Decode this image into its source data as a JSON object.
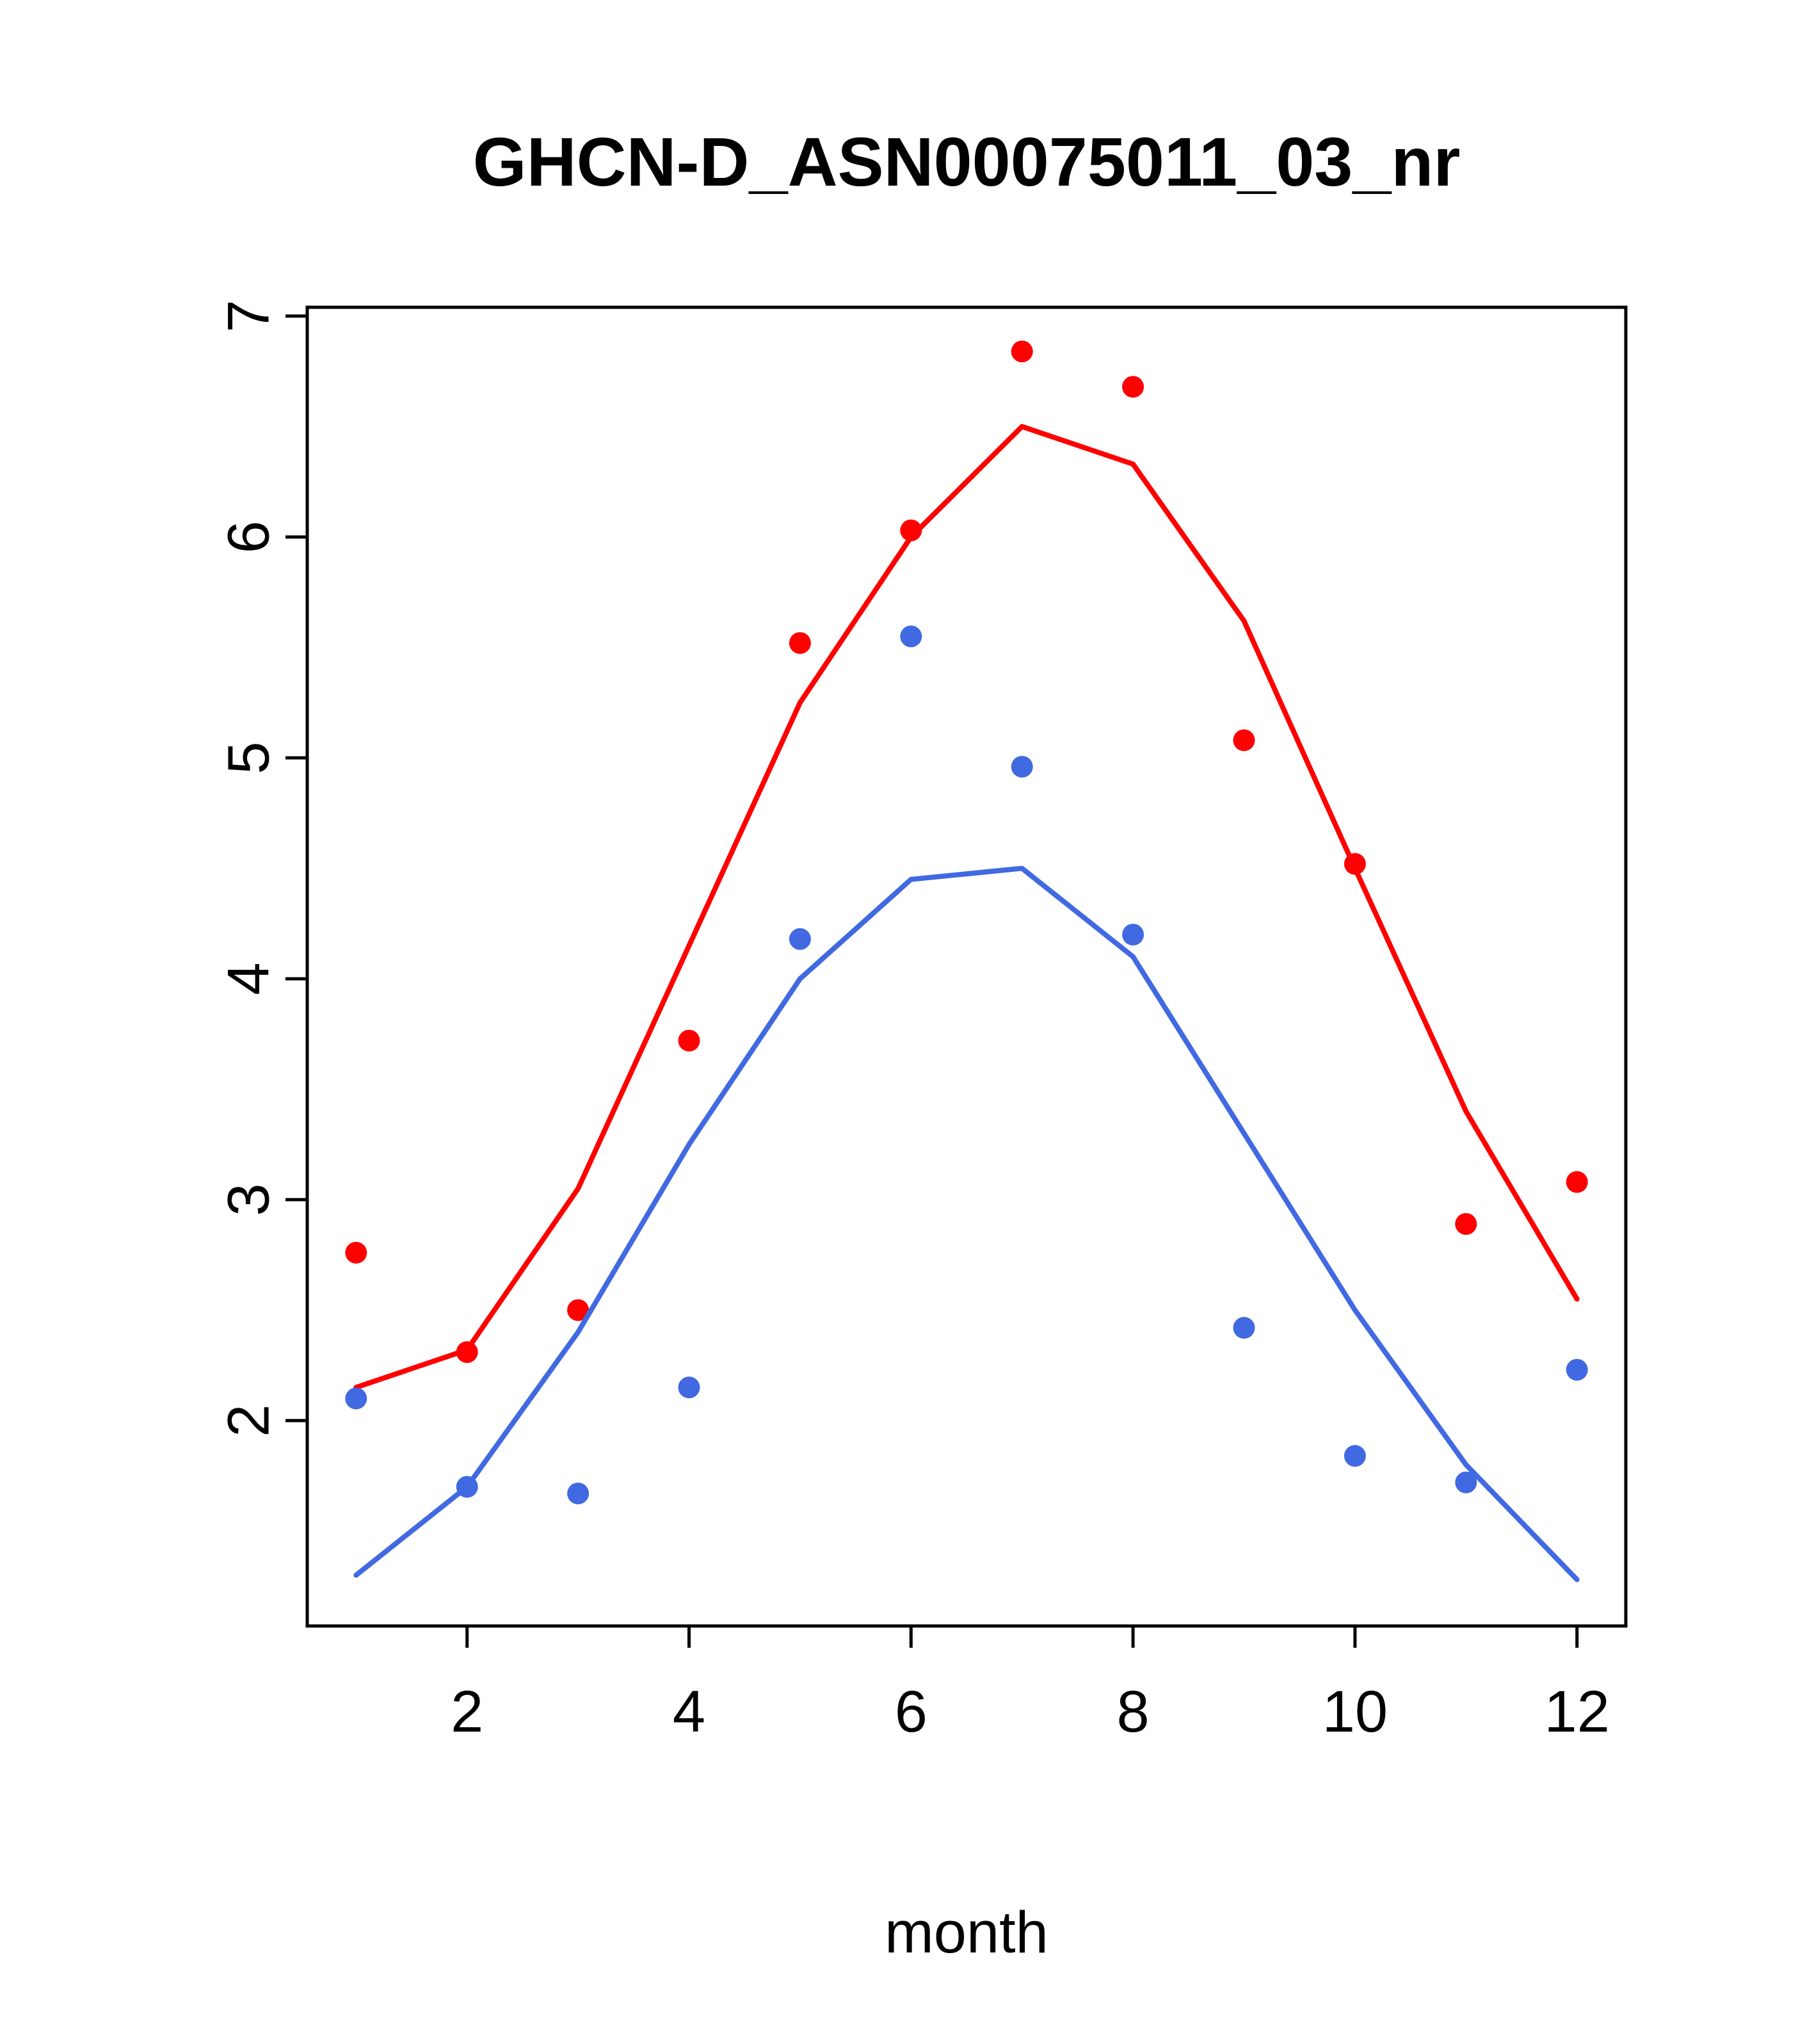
{
  "title": "GHCN-D_ASN00075011_03_nr",
  "xlabel": "month",
  "chart_data": {
    "type": "line",
    "title": "GHCN-D_ASN00075011_03_nr",
    "xlabel": "month",
    "ylabel": "",
    "x": [
      1,
      2,
      3,
      4,
      5,
      6,
      7,
      8,
      9,
      10,
      11,
      12
    ],
    "xticks": [
      2,
      4,
      6,
      8,
      10,
      12
    ],
    "yticks": [
      2,
      3,
      4,
      5,
      6,
      7
    ],
    "xlim": [
      0.56,
      12.44
    ],
    "ylim": [
      1.07,
      7.04
    ],
    "grid": false,
    "legend": "none",
    "series": [
      {
        "name": "red-points",
        "style": "points",
        "color": "#ff0000",
        "values": [
          2.76,
          2.31,
          2.5,
          3.72,
          5.52,
          6.03,
          6.84,
          6.68,
          5.08,
          4.52,
          2.89,
          3.08
        ]
      },
      {
        "name": "red-line",
        "style": "line",
        "color": "#ff0000",
        "values": [
          2.15,
          2.32,
          3.05,
          4.15,
          5.25,
          6.0,
          6.5,
          6.33,
          5.62,
          4.5,
          3.4,
          2.55
        ]
      },
      {
        "name": "blue-points",
        "style": "points",
        "color": "#4169e1",
        "values": [
          2.1,
          1.7,
          1.67,
          2.15,
          4.18,
          5.55,
          4.96,
          4.2,
          2.42,
          1.84,
          1.72,
          2.23
        ]
      },
      {
        "name": "blue-line",
        "style": "line",
        "color": "#4169e1",
        "values": [
          1.3,
          1.7,
          2.4,
          3.25,
          4.0,
          4.45,
          4.5,
          4.1,
          3.3,
          2.5,
          1.8,
          1.28
        ]
      }
    ]
  }
}
